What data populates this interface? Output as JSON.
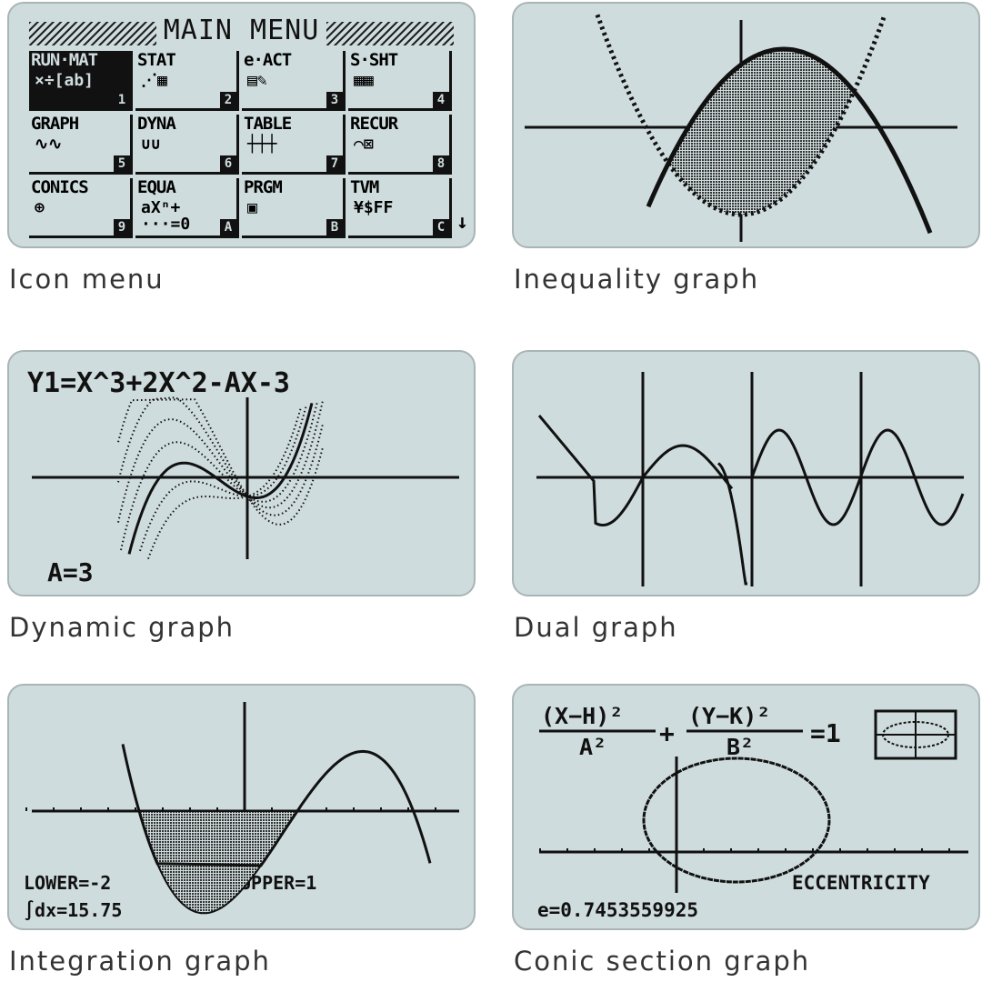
{
  "screens": {
    "icon_menu": {
      "caption": "Icon menu",
      "title": "MAIN MENU",
      "items": [
        {
          "label": "RUN·MAT",
          "icon": "×÷[ab]",
          "num": "1",
          "selected": true
        },
        {
          "label": "STAT",
          "icon": "⋰▦",
          "num": "2"
        },
        {
          "label": "e·ACT",
          "icon": "▤✎",
          "num": "3"
        },
        {
          "label": "S·SHT",
          "icon": "▦▦",
          "num": "4"
        },
        {
          "label": "GRAPH",
          "icon": "∿∿",
          "num": "5"
        },
        {
          "label": "DYNA",
          "icon": "∪∪",
          "num": "6"
        },
        {
          "label": "TABLE",
          "icon": "┼┼┼",
          "num": "7"
        },
        {
          "label": "RECUR",
          "icon": "⌒⊠",
          "num": "8"
        },
        {
          "label": "CONICS",
          "icon": "⊕",
          "num": "9"
        },
        {
          "label": "EQUA",
          "icon": "aXⁿ+ ···=0",
          "num": "A"
        },
        {
          "label": "PRGM",
          "icon": "▣",
          "num": "B"
        },
        {
          "label": "TVM",
          "icon": "¥$FF",
          "num": "C"
        }
      ],
      "scroll_indicator": "↓"
    },
    "inequality": {
      "caption": "Inequality graph"
    },
    "dynamic": {
      "caption": "Dynamic graph",
      "equation": "Y1=X^3+2X^2-AX-3",
      "param": "A=3"
    },
    "dual": {
      "caption": "Dual graph"
    },
    "integration": {
      "caption": "Integration graph",
      "lower": "LOWER=-2",
      "upper": "UPPER=1",
      "result": "∫dx=15.75"
    },
    "conic": {
      "caption": "Conic section graph",
      "num1": "(X−H)²",
      "den1": "A²",
      "plus": "+",
      "num2": "(Y−K)²",
      "den2": "B²",
      "eq": "=1",
      "label": "ECCENTRICITY",
      "value": "e=0.7453559925"
    }
  },
  "colors": {
    "lcd_background": "#cfdcdd",
    "lcd_ink": "#111111"
  }
}
